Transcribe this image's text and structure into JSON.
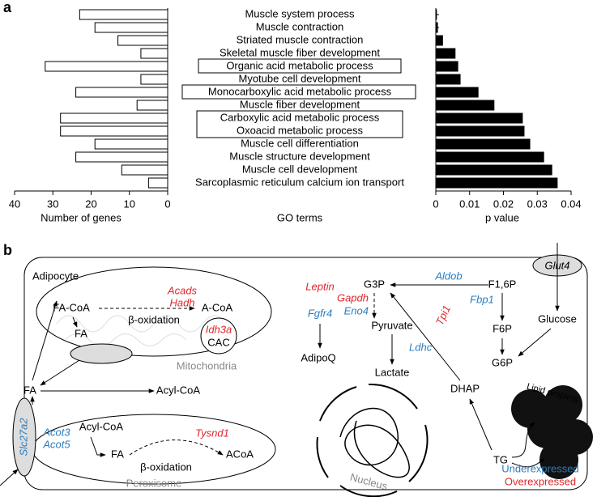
{
  "chart_data": [
    {
      "type": "hbar",
      "panel_label": "a",
      "x_label": "Number of genes",
      "category_label": "GO terms",
      "categories": [
        "Muscle system process",
        "Muscle contraction",
        "Striated muscle contraction",
        "Skeletal muscle fiber development",
        "Organic acid metabolic process",
        "Myotube cell development",
        "Monocarboxylic acid metabolic process",
        "Muscle fiber development",
        "Carboxylic acid metabolic process",
        "Oxoacid metabolic process",
        "Muscle cell differentiation",
        "Muscle structure development",
        "Muscle cell development",
        "Sarcoplasmic reticulum calcium ion transport"
      ],
      "values": [
        23,
        19,
        13,
        7,
        32,
        7,
        24,
        8,
        28,
        28,
        19,
        24,
        12,
        5
      ],
      "color": "#ffffff",
      "xlim": [
        40,
        0
      ],
      "xticks": [
        40,
        30,
        20,
        10,
        0
      ]
    },
    {
      "type": "hbar",
      "x_label": "p value",
      "values": [
        0.0002,
        0.0005,
        0.002,
        0.0057,
        0.0065,
        0.0072,
        0.0125,
        0.0172,
        0.0256,
        0.0261,
        0.0278,
        0.0319,
        0.0343,
        0.0359
      ],
      "color": "#000000",
      "xlim": [
        0,
        0.04
      ],
      "xticks": [
        0,
        0.01,
        0.02,
        0.03,
        0.04
      ]
    }
  ],
  "diagram": {
    "panel_label": "b",
    "cell": "Adipocyte",
    "acads": "Acads",
    "hadh": "Hadh",
    "fa_coa": "FA-CoA",
    "a_coa": "A-CoA",
    "beta_ox_mito": "β-oxidation",
    "idh3a": "Idh3a",
    "cac": "CAC",
    "fa_mito": "FA",
    "mitochondria": "Mitochondria",
    "fa_cyto": "FA",
    "slc27a2": "Slc27a2",
    "acyl_coa_cyto": "Acyl-CoA",
    "acot3": "Acot3",
    "acot5": "Acot5",
    "acyl_coa_perox": "Acyl-CoA",
    "fa_perox": "FA",
    "acoa": "ACoA",
    "tysnd1": "Tysnd1",
    "beta_ox_perox": "β-oxidation",
    "peroxisome": "Peroxisome",
    "leptin": "Leptin",
    "fgfr4": "Fgfr4",
    "adipoq": "AdipoQ",
    "g3p": "G3P",
    "aldob": "Aldob",
    "f16p": "F1,6P",
    "gapdh": "Gapdh",
    "eno4": "Eno4",
    "pyruvate": "Pyruvate",
    "ldhc": "Ldhc",
    "lactate": "Lactate",
    "fbp1": "Fbp1",
    "f6p": "F6P",
    "g6p": "G6P",
    "glucose": "Glucose",
    "glut4": "Glut4",
    "tpi1": "Tpi1",
    "dhap": "DHAP",
    "tg": "TG",
    "lipid_droplets": "Lipid droplets",
    "nucleus": "Nucleus",
    "legend_under": "Underexpressed",
    "legend_over": "Overexpressed"
  }
}
